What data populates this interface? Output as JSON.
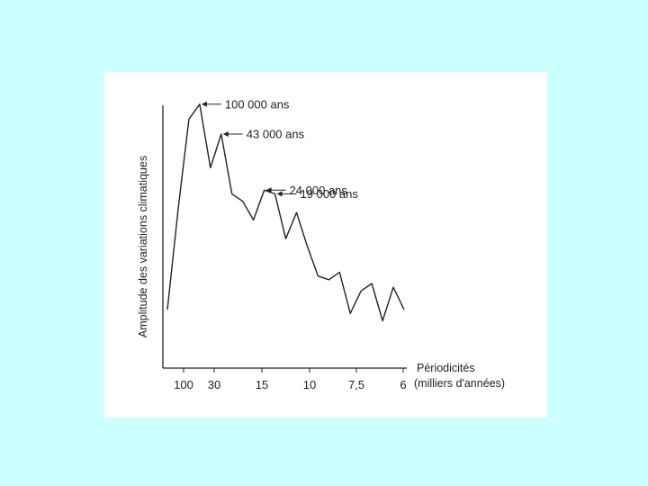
{
  "background_color": "#ccffff",
  "panel_color": "#ffffff",
  "line_color": "#222222",
  "chart_data": {
    "type": "line",
    "title": "",
    "xlabel_line1": "Périodicités",
    "xlabel_line2": "(milliers d'années)",
    "ylabel": "Amplitude des variations climatiques",
    "x_tick_labels": [
      "100",
      "30",
      "15",
      "10",
      "7,5",
      "6"
    ],
    "grid": false,
    "y_axis_values_shown": false,
    "series": [
      {
        "values": [
          1.3,
          4.0,
          6.4,
          6.8,
          5.1,
          6.0,
          4.4,
          4.2,
          3.7,
          4.5,
          4.4,
          3.2,
          3.9,
          3.0,
          2.2,
          2.1,
          2.3,
          1.2,
          1.8,
          2.0,
          1.0,
          1.9,
          1.3
        ]
      }
    ],
    "annotations": [
      {
        "text": "100 000 ans",
        "target_index": 3
      },
      {
        "text": "43 000 ans",
        "target_index": 5
      },
      {
        "text": "24 000 ans",
        "target_index": 9
      },
      {
        "text": "19 000 ans",
        "target_index": 10
      }
    ]
  }
}
